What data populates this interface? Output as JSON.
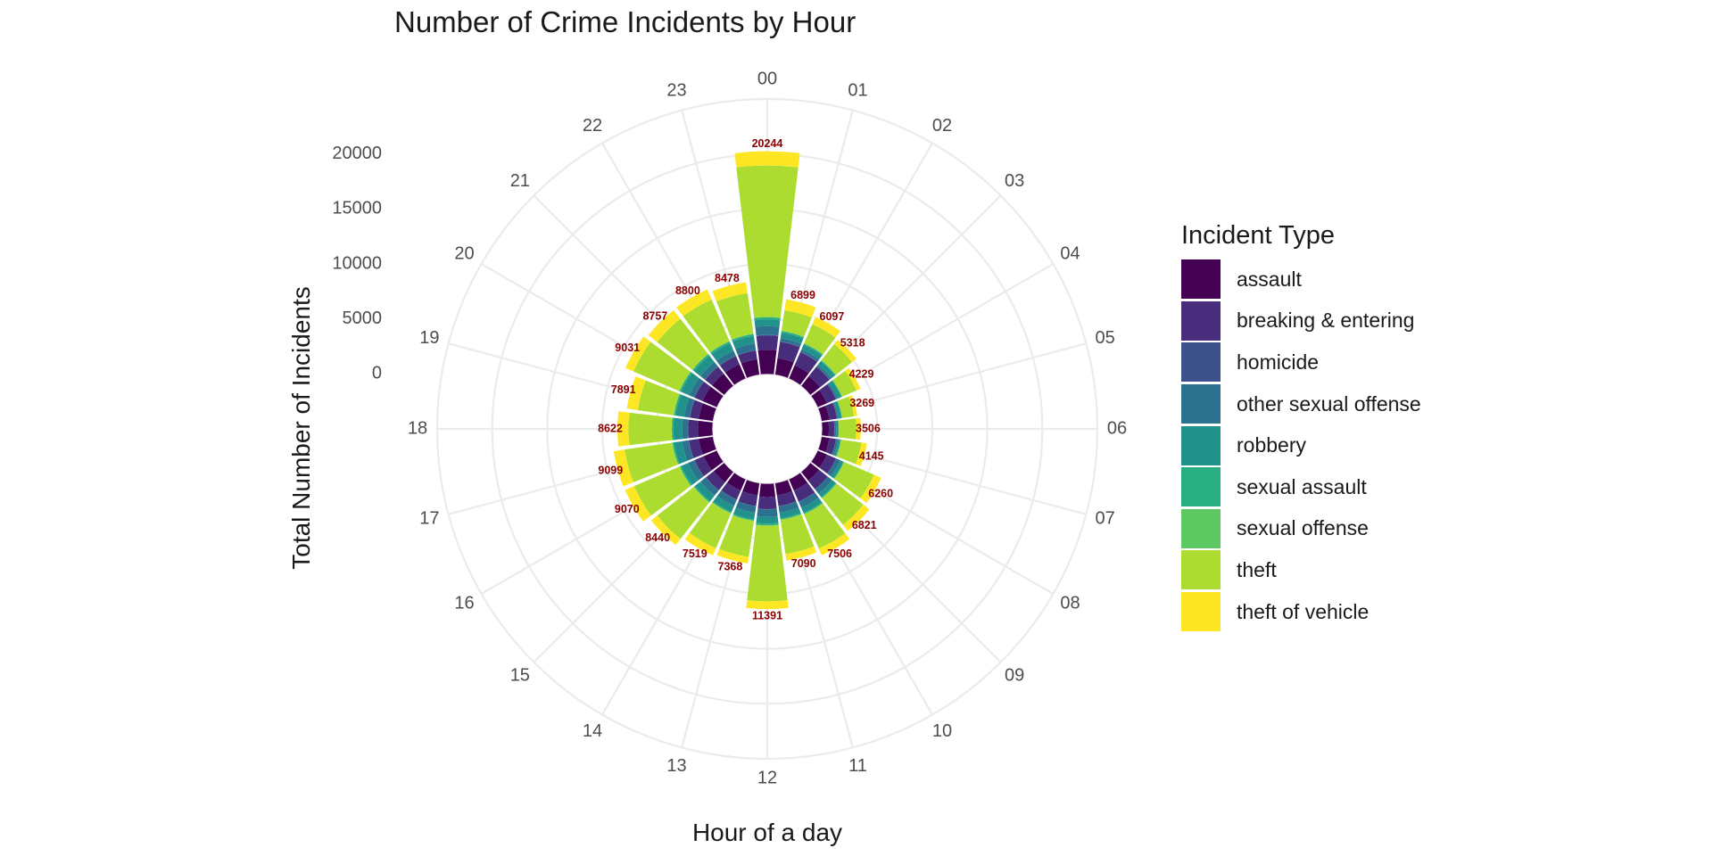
{
  "chart_data": {
    "type": "bar",
    "subtype": "stacked-polar",
    "title": "Number of Crime Incidents by Hour",
    "xlabel": "Hour of a day",
    "ylabel": "Total Number of Incidents",
    "ylim": [
      -5000,
      25000
    ],
    "y_ticks": [
      "0",
      "5000",
      "10000",
      "15000",
      "20000"
    ],
    "grid": true,
    "legend_position": "right",
    "legend_title": "Incident Type",
    "categories": [
      "00",
      "01",
      "02",
      "03",
      "04",
      "05",
      "06",
      "07",
      "08",
      "09",
      "10",
      "11",
      "12",
      "13",
      "14",
      "15",
      "16",
      "17",
      "18",
      "19",
      "20",
      "21",
      "22",
      "23"
    ],
    "totals": [
      20244,
      6899,
      6097,
      5318,
      4229,
      3269,
      3506,
      4145,
      6260,
      6821,
      7506,
      7090,
      11391,
      7368,
      7519,
      8440,
      9070,
      9099,
      8622,
      7891,
      9031,
      8757,
      8800,
      8478
    ],
    "total_labels": [
      "20244",
      "6899",
      "6097",
      "5318",
      "4229",
      "3269",
      "3506",
      "4145",
      "6260",
      "6821",
      "7506",
      "7090",
      "11391",
      "7368",
      "7519",
      "8440",
      "9070",
      "9099",
      "8622",
      "7891",
      "9031",
      "8757",
      "8800",
      "8478"
    ],
    "series": [
      {
        "name": "assault",
        "color": "#440154",
        "values": [
          2200,
          1500,
          1300,
          1100,
          900,
          700,
          600,
          700,
          900,
          1000,
          1100,
          1100,
          1200,
          1100,
          1100,
          1200,
          1300,
          1300,
          1300,
          1300,
          1400,
          1400,
          1400,
          1400
        ]
      },
      {
        "name": "breaking & entering",
        "color": "#472d7b",
        "values": [
          1300,
          1500,
          1300,
          1100,
          900,
          700,
          500,
          600,
          900,
          1000,
          1100,
          1000,
          1100,
          1000,
          900,
          900,
          900,
          900,
          900,
          800,
          800,
          800,
          800,
          800
        ]
      },
      {
        "name": "homicide",
        "color": "#3b528b",
        "values": [
          40,
          40,
          30,
          25,
          20,
          15,
          10,
          10,
          10,
          10,
          10,
          15,
          15,
          15,
          20,
          20,
          20,
          25,
          30,
          30,
          30,
          35,
          35,
          40
        ]
      },
      {
        "name": "other sexual offense",
        "color": "#2c728e",
        "values": [
          800,
          300,
          250,
          200,
          150,
          100,
          150,
          200,
          400,
          500,
          600,
          600,
          700,
          600,
          600,
          600,
          600,
          600,
          500,
          500,
          500,
          500,
          500,
          600
        ]
      },
      {
        "name": "robbery",
        "color": "#21918c",
        "values": [
          600,
          500,
          450,
          400,
          350,
          300,
          200,
          200,
          300,
          400,
          500,
          500,
          600,
          600,
          600,
          650,
          700,
          750,
          800,
          800,
          800,
          750,
          750,
          700
        ]
      },
      {
        "name": "sexual assault",
        "color": "#28ae80",
        "values": [
          200,
          150,
          120,
          100,
          80,
          60,
          50,
          60,
          80,
          100,
          120,
          120,
          150,
          120,
          120,
          120,
          130,
          130,
          140,
          140,
          150,
          160,
          170,
          180
        ]
      },
      {
        "name": "sexual offense",
        "color": "#5ec962",
        "values": [
          60,
          30,
          25,
          20,
          15,
          10,
          10,
          15,
          25,
          30,
          35,
          35,
          40,
          35,
          35,
          35,
          35,
          35,
          35,
          35,
          35,
          40,
          40,
          40
        ]
      },
      {
        "name": "theft",
        "color": "#addc30",
        "values": [
          13744,
          1879,
          1882,
          1873,
          1414,
          1084,
          1586,
          1860,
          2945,
          3081,
          3381,
          3120,
          6886,
          3298,
          3444,
          4215,
          4485,
          4359,
          3917,
          3286,
          4516,
          4072,
          4105,
          3718
        ]
      },
      {
        "name": "theft of vehicle",
        "color": "#fde725",
        "values": [
          1300,
          1000,
          740,
          500,
          400,
          300,
          400,
          500,
          700,
          700,
          660,
          600,
          700,
          600,
          700,
          700,
          900,
          1000,
          1000,
          1000,
          800,
          1000,
          1000,
          1000
        ]
      }
    ]
  }
}
